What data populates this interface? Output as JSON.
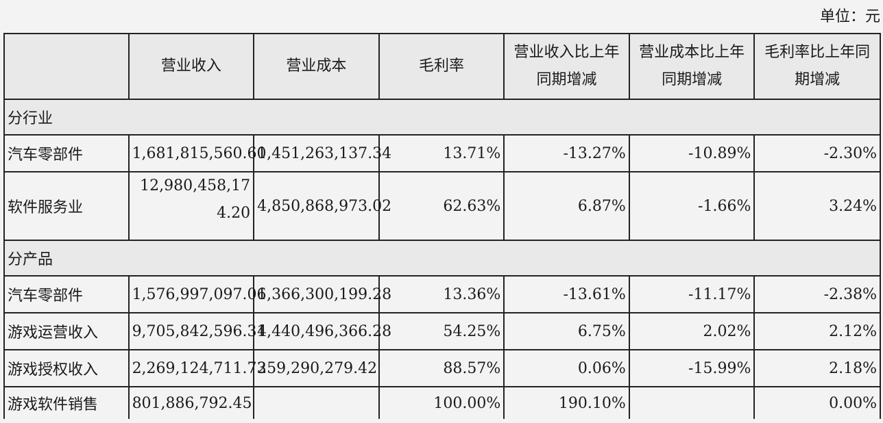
{
  "unit_label": "单位：元",
  "headers": {
    "blank": "",
    "revenue": "营业收入",
    "cost": "营业成本",
    "margin": "毛利率",
    "revenue_change": "营业收入比上年同期增减",
    "cost_change": "营业成本比上年同期增减",
    "margin_change": "毛利率比上年同期增减"
  },
  "sections": {
    "industry": "分行业",
    "product": "分产品"
  },
  "industry_rows": [
    {
      "name": "汽车零部件",
      "revenue": "1,681,815,560.60",
      "cost": "1,451,263,137.34",
      "margin": "13.71%",
      "revenue_change": "-13.27%",
      "cost_change": "-10.89%",
      "margin_change": "-2.30%"
    },
    {
      "name": "软件服务业",
      "revenue": "12,980,458,174.20",
      "cost": "4,850,868,973.02",
      "margin": "62.63%",
      "revenue_change": "6.87%",
      "cost_change": "-1.66%",
      "margin_change": "3.24%"
    }
  ],
  "product_rows": [
    {
      "name": "汽车零部件",
      "revenue": "1,576,997,097.06",
      "cost": "1,366,300,199.28",
      "margin": "13.36%",
      "revenue_change": "-13.61%",
      "cost_change": "-11.17%",
      "margin_change": "-2.38%"
    },
    {
      "name": "游戏运营收入",
      "revenue": "9,705,842,596.31",
      "cost": "4,440,496,366.28",
      "margin": "54.25%",
      "revenue_change": "6.75%",
      "cost_change": "2.02%",
      "margin_change": "2.12%"
    },
    {
      "name": "游戏授权收入",
      "revenue": "2,269,124,711.73",
      "cost": "259,290,279.42",
      "margin": "88.57%",
      "revenue_change": "0.06%",
      "cost_change": "-15.99%",
      "margin_change": "2.18%"
    },
    {
      "name": "游戏软件销售",
      "revenue": "801,886,792.45",
      "cost": "",
      "margin": "100.00%",
      "revenue_change": "190.10%",
      "cost_change": "",
      "margin_change": "0.00%"
    }
  ]
}
